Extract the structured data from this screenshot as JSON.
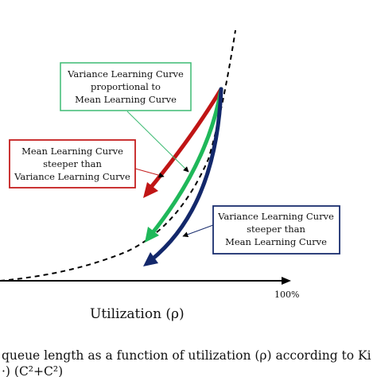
{
  "boxes": {
    "proportional": {
      "lines": [
        "Variance Learning Curve",
        "proportional to",
        "Mean Learning Curve"
      ],
      "color": "#3dbb73"
    },
    "mean_steeper": {
      "lines": [
        "Mean Learning Curve",
        "steeper than",
        "Variance Learning Curve"
      ],
      "color": "#c41e1e"
    },
    "variance_steeper": {
      "lines": [
        "Variance Learning Curve",
        "steeper than",
        "Mean Learning Curve"
      ],
      "color": "#1a2e6e"
    }
  },
  "axis": {
    "xlabel": "Utilization (ρ)",
    "end_label": "100%"
  },
  "caption": {
    "line1": "queue length as a function of utilization (ρ) according to Ki",
    "line2": "·) (C²+C²)"
  },
  "colors": {
    "red_curve": "#c01515",
    "green_curve": "#1fb85a",
    "blue_curve": "#13286b",
    "queue_curve": "#000000"
  }
}
